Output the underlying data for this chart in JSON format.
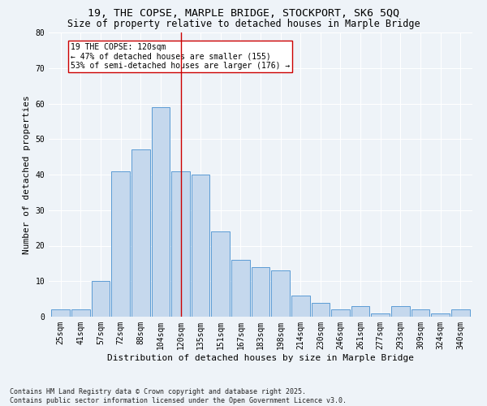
{
  "title": "19, THE COPSE, MARPLE BRIDGE, STOCKPORT, SK6 5QQ",
  "subtitle": "Size of property relative to detached houses in Marple Bridge",
  "xlabel": "Distribution of detached houses by size in Marple Bridge",
  "ylabel": "Number of detached properties",
  "categories": [
    "25sqm",
    "41sqm",
    "57sqm",
    "72sqm",
    "88sqm",
    "104sqm",
    "120sqm",
    "135sqm",
    "151sqm",
    "167sqm",
    "183sqm",
    "198sqm",
    "214sqm",
    "230sqm",
    "246sqm",
    "261sqm",
    "277sqm",
    "293sqm",
    "309sqm",
    "324sqm",
    "340sqm"
  ],
  "values": [
    2,
    2,
    10,
    41,
    47,
    59,
    41,
    40,
    24,
    16,
    14,
    13,
    6,
    4,
    2,
    3,
    1,
    3,
    2,
    1,
    2
  ],
  "bar_color": "#c5d8ed",
  "bar_edge_color": "#5b9bd5",
  "marker_index": 6,
  "marker_label": "19 THE COPSE: 120sqm\n← 47% of detached houses are smaller (155)\n53% of semi-detached houses are larger (176) →",
  "marker_color": "#cc0000",
  "ylim": [
    0,
    80
  ],
  "yticks": [
    0,
    10,
    20,
    30,
    40,
    50,
    60,
    70,
    80
  ],
  "background_color": "#eef3f8",
  "grid_color": "#ffffff",
  "footer": "Contains HM Land Registry data © Crown copyright and database right 2025.\nContains public sector information licensed under the Open Government Licence v3.0.",
  "title_fontsize": 9.5,
  "subtitle_fontsize": 8.5,
  "axis_label_fontsize": 8,
  "tick_fontsize": 7,
  "annotation_fontsize": 7,
  "footer_fontsize": 6
}
